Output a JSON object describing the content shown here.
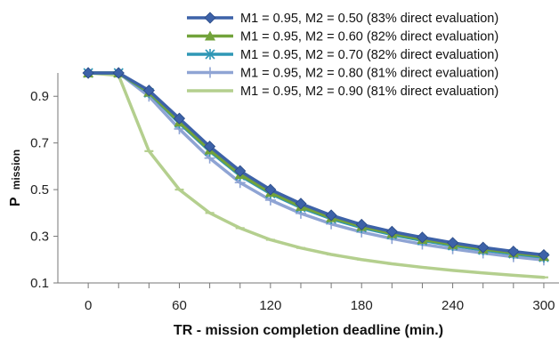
{
  "chart_data": {
    "type": "line",
    "title": "",
    "xlabel": "TR - mission completion deadline (min.)",
    "ylabel_main": "P",
    "ylabel_sub": "mission",
    "xlim": [
      -20,
      310
    ],
    "ylim": [
      0.1,
      1.0
    ],
    "x_ticks": [
      0,
      60,
      120,
      180,
      240,
      300
    ],
    "y_ticks": [
      0.1,
      0.3,
      0.5,
      0.7,
      0.9
    ],
    "grid": false,
    "legend_position": "top-right",
    "x": [
      0,
      20,
      40,
      60,
      80,
      100,
      120,
      140,
      160,
      180,
      200,
      220,
      240,
      260,
      280,
      300
    ],
    "series": [
      {
        "name": "M1 = 0.95, M2 = 0.50 (83% direct evaluation)",
        "color": "#3d62a8",
        "marker": "diamond",
        "values": [
          1.0,
          1.0,
          0.925,
          0.805,
          0.685,
          0.58,
          0.5,
          0.44,
          0.39,
          0.35,
          0.32,
          0.295,
          0.272,
          0.252,
          0.235,
          0.22
        ]
      },
      {
        "name": "M1 = 0.95, M2 = 0.60 (82% direct evaluation)",
        "color": "#72a33b",
        "marker": "triangle",
        "values": [
          1.0,
          1.0,
          0.918,
          0.79,
          0.67,
          0.565,
          0.488,
          0.428,
          0.38,
          0.342,
          0.312,
          0.287,
          0.265,
          0.246,
          0.229,
          0.214
        ]
      },
      {
        "name": "M1 = 0.95, M2 = 0.70 (82% direct evaluation)",
        "color": "#2f97b5",
        "marker": "star",
        "values": [
          1.0,
          1.0,
          0.915,
          0.785,
          0.665,
          0.56,
          0.483,
          0.423,
          0.375,
          0.337,
          0.307,
          0.282,
          0.26,
          0.241,
          0.225,
          0.21
        ]
      },
      {
        "name": "M1 = 0.95, M2 = 0.80 (81% direct evaluation)",
        "color": "#8fa4d4",
        "marker": "plus",
        "values": [
          1.0,
          1.0,
          0.9,
          0.76,
          0.635,
          0.53,
          0.455,
          0.398,
          0.353,
          0.318,
          0.29,
          0.266,
          0.246,
          0.228,
          0.212,
          0.198
        ]
      },
      {
        "name": "M1 = 0.95, M2 = 0.90 (81% direct evaluation)",
        "color": "#b4cf8e",
        "marker": "dash",
        "values": [
          1.0,
          0.99,
          0.665,
          0.5,
          0.4,
          0.335,
          0.285,
          0.25,
          0.222,
          0.2,
          0.182,
          0.167,
          0.154,
          0.143,
          0.133,
          0.124
        ]
      }
    ]
  }
}
